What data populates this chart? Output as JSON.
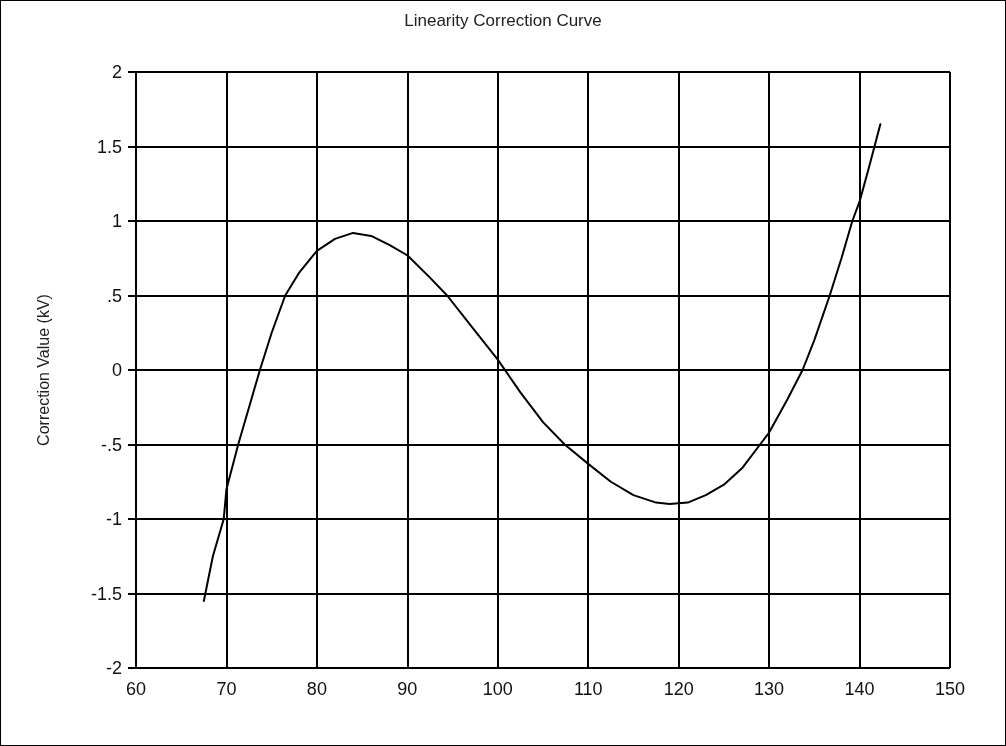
{
  "chart_data": {
    "type": "line",
    "title": "Linearity Correction Curve",
    "ylabel": "Correction Value (kV)",
    "series": [
      {
        "color": "#000000",
        "x": [
          67.5,
          68.5,
          69.7,
          70,
          71.3,
          72.5,
          73.7,
          75,
          76.5,
          78,
          80,
          82,
          84,
          86,
          88,
          90,
          92.5,
          94.4,
          97,
          100,
          102.5,
          105,
          107.4,
          110,
          112.5,
          115,
          117.5,
          119,
          121,
          123,
          125,
          127,
          129,
          130,
          132,
          133.7,
          135,
          136.7,
          138,
          139.2,
          140,
          141,
          142.3
        ],
        "values": [
          -1.55,
          -1.25,
          -1,
          -0.8,
          -0.5,
          -0.25,
          0,
          0.25,
          0.5,
          0.65,
          0.8,
          0.88,
          0.92,
          0.9,
          0.84,
          0.77,
          0.62,
          0.5,
          0.3,
          0.07,
          -0.15,
          -0.35,
          -0.5,
          -0.63,
          -0.75,
          -0.84,
          -0.89,
          -0.9,
          -0.89,
          -0.84,
          -0.77,
          -0.66,
          -0.5,
          -0.42,
          -0.2,
          0,
          0.2,
          0.5,
          0.75,
          1,
          1.13,
          1.35,
          1.65
        ]
      }
    ],
    "xlim": [
      60,
      150
    ],
    "xticks": [
      60,
      70,
      80,
      90,
      100,
      110,
      120,
      130,
      140,
      150
    ],
    "ylim": [
      -2,
      2
    ],
    "yticks": [
      {
        "value": -2,
        "label": "-2"
      },
      {
        "value": -1.5,
        "label": "-1.5"
      },
      {
        "value": -1,
        "label": "-1"
      },
      {
        "value": -0.5,
        "label": "-.5"
      },
      {
        "value": 0,
        "label": "0"
      },
      {
        "value": 0.5,
        "label": ".5"
      },
      {
        "value": 1,
        "label": "1"
      },
      {
        "value": 1.5,
        "label": "1.5"
      },
      {
        "value": 2,
        "label": "2"
      }
    ],
    "grid": true,
    "marker": "none",
    "line_style": "solid"
  }
}
